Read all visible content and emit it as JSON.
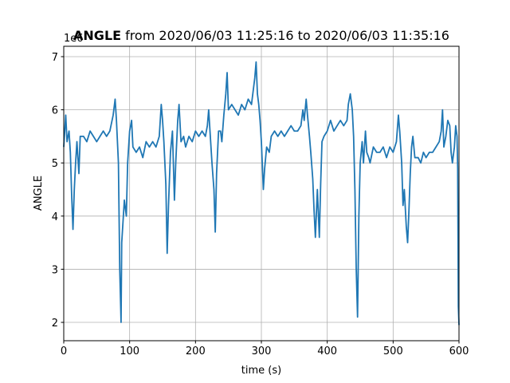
{
  "chart_data": {
    "type": "line",
    "title_bold": "ANGLE",
    "title": "from 2020/06/03 11:25:16 to 2020/06/03 11:35:16",
    "x_label": "time (s)",
    "y_label": "ANGLE",
    "y_offset_label": "1e6",
    "xlim": [
      0,
      600
    ],
    "ylim": [
      1.655,
      7.195
    ],
    "xticks": [
      0,
      100,
      200,
      300,
      400,
      500,
      600
    ],
    "yticks": [
      2,
      3,
      4,
      5,
      6,
      7
    ],
    "grid": true,
    "series": [
      {
        "color": "#1f77b4",
        "x": [
          0,
          3,
          5,
          8,
          10,
          12,
          14,
          16,
          18,
          20,
          23,
          25,
          30,
          35,
          40,
          45,
          50,
          55,
          60,
          65,
          70,
          75,
          78,
          80,
          83,
          85,
          87,
          88,
          90,
          92,
          95,
          97,
          100,
          103,
          105,
          110,
          115,
          120,
          125,
          130,
          135,
          140,
          145,
          148,
          150,
          152,
          155,
          157,
          159,
          162,
          165,
          168,
          170,
          173,
          175,
          178,
          182,
          185,
          190,
          195,
          200,
          205,
          210,
          215,
          218,
          220,
          222,
          225,
          228,
          230,
          232,
          235,
          238,
          240,
          243,
          246,
          248,
          250,
          255,
          260,
          265,
          270,
          275,
          280,
          285,
          290,
          292,
          294,
          296,
          298,
          300,
          303,
          305,
          308,
          312,
          315,
          320,
          325,
          330,
          335,
          340,
          345,
          350,
          355,
          360,
          363,
          365,
          368,
          370,
          373,
          375,
          378,
          380,
          382,
          385,
          388,
          390,
          392,
          395,
          400,
          405,
          410,
          415,
          420,
          425,
          430,
          432,
          435,
          438,
          440,
          442,
          444,
          446,
          448,
          450,
          453,
          455,
          458,
          460,
          463,
          465,
          470,
          475,
          480,
          485,
          490,
          495,
          500,
          505,
          508,
          510,
          513,
          515,
          517,
          520,
          522,
          524,
          526,
          528,
          530,
          533,
          538,
          542,
          546,
          550,
          555,
          560,
          565,
          570,
          573,
          575,
          577,
          580,
          583,
          586,
          588,
          590,
          593,
          595,
          597,
          598,
          599,
          600
        ],
        "values": [
          5.3,
          5.9,
          5.4,
          5.6,
          5.2,
          4.4,
          3.75,
          4.5,
          5.0,
          5.4,
          4.8,
          5.5,
          5.5,
          5.4,
          5.6,
          5.5,
          5.4,
          5.5,
          5.6,
          5.5,
          5.6,
          5.9,
          6.2,
          5.8,
          5.0,
          3.0,
          2.0,
          3.5,
          3.9,
          4.3,
          4.0,
          5.0,
          5.6,
          5.8,
          5.3,
          5.2,
          5.3,
          5.1,
          5.4,
          5.3,
          5.4,
          5.3,
          5.5,
          6.1,
          5.8,
          5.4,
          4.6,
          3.3,
          4.2,
          5.2,
          5.6,
          4.3,
          5.0,
          5.8,
          6.1,
          5.4,
          5.5,
          5.3,
          5.5,
          5.4,
          5.6,
          5.5,
          5.6,
          5.5,
          5.7,
          6.0,
          5.6,
          5.0,
          4.5,
          3.7,
          4.8,
          5.6,
          5.6,
          5.4,
          5.9,
          6.3,
          6.7,
          6.0,
          6.1,
          6.0,
          5.9,
          6.1,
          6.0,
          6.2,
          6.1,
          6.6,
          6.9,
          6.3,
          6.1,
          5.8,
          5.4,
          4.5,
          4.9,
          5.3,
          5.2,
          5.5,
          5.6,
          5.5,
          5.6,
          5.5,
          5.6,
          5.7,
          5.6,
          5.6,
          5.7,
          6.0,
          5.8,
          6.2,
          5.9,
          5.5,
          5.2,
          4.7,
          4.1,
          3.6,
          4.5,
          3.6,
          4.6,
          5.4,
          5.5,
          5.6,
          5.8,
          5.6,
          5.7,
          5.8,
          5.7,
          5.8,
          6.1,
          6.3,
          6.0,
          5.5,
          4.5,
          3.0,
          2.1,
          4.0,
          5.0,
          5.4,
          5.0,
          5.6,
          5.2,
          5.1,
          5.0,
          5.3,
          5.2,
          5.2,
          5.3,
          5.1,
          5.3,
          5.2,
          5.4,
          5.9,
          5.6,
          5.0,
          4.2,
          4.5,
          3.8,
          3.5,
          4.1,
          4.8,
          5.3,
          5.5,
          5.1,
          5.1,
          5.0,
          5.2,
          5.1,
          5.2,
          5.2,
          5.3,
          5.4,
          5.6,
          6.0,
          5.3,
          5.5,
          5.8,
          5.7,
          5.2,
          5.0,
          5.3,
          5.7,
          5.5,
          4.9,
          2.3,
          1.95
        ]
      }
    ]
  }
}
